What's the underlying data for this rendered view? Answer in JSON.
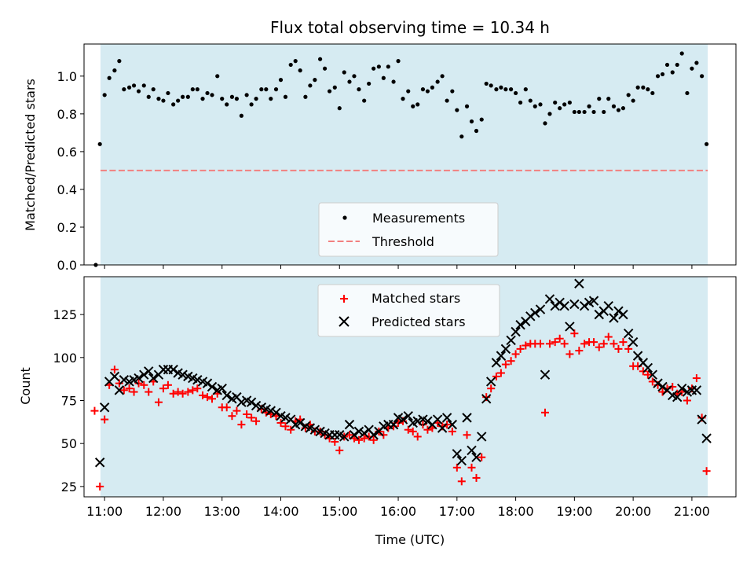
{
  "chart_data": [
    {
      "type": "scatter",
      "title": "Flux total observing time = 10.34 h",
      "xlabel": "",
      "ylabel": "Matched/Predicted stars",
      "xlim": [
        10.65,
        21.75
      ],
      "ylim": [
        0.0,
        1.17
      ],
      "yticks": [
        0.0,
        0.2,
        0.4,
        0.6,
        0.8,
        1.0
      ],
      "ytick_labels": [
        "0.0",
        "0.2",
        "0.4",
        "0.6",
        "0.8",
        "1.0"
      ],
      "observing_window": [
        10.93,
        21.27
      ],
      "legend": "lower-center",
      "series": [
        {
          "name": "Measurements",
          "marker": "dot",
          "color": "#000000",
          "x": [
            10.85,
            10.92,
            11.0,
            11.08,
            11.17,
            11.25,
            11.33,
            11.42,
            11.5,
            11.58,
            11.67,
            11.75,
            11.83,
            11.92,
            12.0,
            12.08,
            12.17,
            12.25,
            12.33,
            12.42,
            12.5,
            12.58,
            12.67,
            12.75,
            12.83,
            12.92,
            13.0,
            13.08,
            13.17,
            13.25,
            13.33,
            13.42,
            13.5,
            13.58,
            13.67,
            13.75,
            13.83,
            13.92,
            14.0,
            14.08,
            14.17,
            14.25,
            14.33,
            14.42,
            14.5,
            14.58,
            14.67,
            14.75,
            14.83,
            14.92,
            15.0,
            15.08,
            15.17,
            15.25,
            15.33,
            15.42,
            15.5,
            15.58,
            15.67,
            15.75,
            15.83,
            15.92,
            16.0,
            16.08,
            16.17,
            16.25,
            16.33,
            16.42,
            16.5,
            16.58,
            16.67,
            16.75,
            16.83,
            16.92,
            17.0,
            17.08,
            17.17,
            17.25,
            17.33,
            17.42,
            17.5,
            17.58,
            17.67,
            17.75,
            17.83,
            17.92,
            18.0,
            18.08,
            18.17,
            18.25,
            18.33,
            18.42,
            18.5,
            18.58,
            18.67,
            18.75,
            18.83,
            18.92,
            19.0,
            19.08,
            19.17,
            19.25,
            19.33,
            19.42,
            19.5,
            19.58,
            19.67,
            19.75,
            19.83,
            19.92,
            20.0,
            20.08,
            20.17,
            20.25,
            20.33,
            20.42,
            20.5,
            20.58,
            20.67,
            20.75,
            20.83,
            20.92,
            21.0,
            21.08,
            21.17,
            21.25
          ],
          "y": [
            0.0,
            0.64,
            0.9,
            0.99,
            1.03,
            1.08,
            0.93,
            0.94,
            0.95,
            0.92,
            0.95,
            0.89,
            0.93,
            0.88,
            0.87,
            0.91,
            0.85,
            0.87,
            0.89,
            0.89,
            0.93,
            0.93,
            0.88,
            0.91,
            0.9,
            1.0,
            0.88,
            0.85,
            0.89,
            0.88,
            0.79,
            0.9,
            0.85,
            0.88,
            0.93,
            0.93,
            0.88,
            0.93,
            0.98,
            0.89,
            1.06,
            1.08,
            1.03,
            0.89,
            0.95,
            0.98,
            1.09,
            1.04,
            0.92,
            0.94,
            0.83,
            1.02,
            0.97,
            1.0,
            0.93,
            0.87,
            0.96,
            1.04,
            1.05,
            0.99,
            1.05,
            0.97,
            1.08,
            0.88,
            0.92,
            0.84,
            0.85,
            0.93,
            0.92,
            0.94,
            0.97,
            1.0,
            0.87,
            0.92,
            0.82,
            0.68,
            0.84,
            0.76,
            0.71,
            0.77,
            0.96,
            0.95,
            0.93,
            0.94,
            0.93,
            0.93,
            0.91,
            0.86,
            0.93,
            0.87,
            0.84,
            0.85,
            0.75,
            0.8,
            0.86,
            0.83,
            0.85,
            0.86,
            0.81,
            0.81,
            0.81,
            0.84,
            0.81,
            0.88,
            0.81,
            0.88,
            0.84,
            0.82,
            0.83,
            0.9,
            0.87,
            0.94,
            0.94,
            0.93,
            0.91,
            1.0,
            1.01,
            1.06,
            1.02,
            1.06,
            1.12,
            0.91,
            1.04,
            1.07,
            1.0,
            0.64
          ]
        },
        {
          "name": "Threshold",
          "type": "line",
          "style": "dashed",
          "color": "#f28080",
          "x": [
            10.93,
            21.27
          ],
          "y": [
            0.5,
            0.5
          ]
        }
      ]
    },
    {
      "type": "scatter",
      "title": "",
      "xlabel": "Time (UTC)",
      "ylabel": "Count",
      "xlim": [
        10.65,
        21.75
      ],
      "ylim": [
        19,
        147
      ],
      "yticks": [
        25,
        50,
        75,
        100,
        125
      ],
      "ytick_labels": [
        "25",
        "50",
        "75",
        "100",
        "125"
      ],
      "xticks": [
        11,
        12,
        13,
        14,
        15,
        16,
        17,
        18,
        19,
        20,
        21
      ],
      "xtick_labels": [
        "11:00",
        "12:00",
        "13:00",
        "14:00",
        "15:00",
        "16:00",
        "17:00",
        "18:00",
        "19:00",
        "20:00",
        "21:00"
      ],
      "observing_window": [
        10.93,
        21.27
      ],
      "legend": "top-center",
      "series": [
        {
          "name": "Matched stars",
          "marker": "plus",
          "color": "#ff0000",
          "x": [
            10.83,
            10.92,
            11.0,
            11.08,
            11.17,
            11.25,
            11.33,
            11.42,
            11.5,
            11.58,
            11.67,
            11.75,
            11.83,
            11.92,
            12.0,
            12.08,
            12.17,
            12.25,
            12.33,
            12.42,
            12.5,
            12.58,
            12.67,
            12.75,
            12.83,
            12.92,
            13.0,
            13.08,
            13.17,
            13.25,
            13.33,
            13.42,
            13.5,
            13.58,
            13.67,
            13.75,
            13.83,
            13.92,
            14.0,
            14.08,
            14.17,
            14.25,
            14.33,
            14.42,
            14.5,
            14.58,
            14.67,
            14.75,
            14.83,
            14.92,
            15.0,
            15.08,
            15.17,
            15.25,
            15.33,
            15.42,
            15.5,
            15.58,
            15.67,
            15.75,
            15.83,
            15.92,
            16.0,
            16.08,
            16.17,
            16.25,
            16.33,
            16.42,
            16.5,
            16.58,
            16.67,
            16.75,
            16.83,
            16.92,
            17.0,
            17.08,
            17.17,
            17.25,
            17.33,
            17.42,
            17.5,
            17.58,
            17.67,
            17.75,
            17.83,
            17.92,
            18.0,
            18.08,
            18.17,
            18.25,
            18.33,
            18.42,
            18.5,
            18.58,
            18.67,
            18.75,
            18.83,
            18.92,
            19.0,
            19.08,
            19.17,
            19.25,
            19.33,
            19.42,
            19.5,
            19.58,
            19.67,
            19.75,
            19.83,
            19.92,
            20.0,
            20.08,
            20.17,
            20.25,
            20.33,
            20.42,
            20.5,
            20.58,
            20.67,
            20.75,
            20.83,
            20.92,
            21.0,
            21.08,
            21.17,
            21.25
          ],
          "y": [
            69,
            25,
            64,
            84,
            93,
            85,
            81,
            82,
            80,
            85,
            84,
            80,
            86,
            74,
            82,
            84,
            79,
            80,
            79,
            80,
            81,
            82,
            78,
            77,
            76,
            79,
            71,
            71,
            66,
            69,
            61,
            67,
            65,
            63,
            70,
            68,
            67,
            66,
            62,
            60,
            58,
            63,
            64,
            59,
            61,
            57,
            57,
            55,
            53,
            51,
            46,
            54,
            55,
            53,
            52,
            53,
            54,
            52,
            57,
            55,
            59,
            60,
            62,
            63,
            58,
            57,
            54,
            61,
            58,
            59,
            62,
            60,
            61,
            57,
            36,
            28,
            55,
            36,
            30,
            42,
            77,
            82,
            89,
            91,
            96,
            98,
            102,
            105,
            107,
            108,
            108,
            108,
            68,
            108,
            109,
            111,
            108,
            102,
            114,
            104,
            108,
            109,
            109,
            106,
            108,
            112,
            108,
            105,
            109,
            105,
            95,
            95,
            92,
            90,
            86,
            84,
            80,
            82,
            83,
            79,
            80,
            75,
            82,
            88,
            65,
            34
          ]
        },
        {
          "name": "Predicted stars",
          "marker": "x",
          "color": "#000000",
          "x": [
            10.92,
            11.0,
            11.08,
            11.17,
            11.25,
            11.33,
            11.42,
            11.5,
            11.58,
            11.67,
            11.75,
            11.83,
            11.92,
            12.0,
            12.08,
            12.17,
            12.25,
            12.33,
            12.42,
            12.5,
            12.58,
            12.67,
            12.75,
            12.83,
            12.92,
            13.0,
            13.08,
            13.17,
            13.25,
            13.33,
            13.42,
            13.5,
            13.58,
            13.67,
            13.75,
            13.83,
            13.92,
            14.0,
            14.08,
            14.17,
            14.25,
            14.33,
            14.42,
            14.5,
            14.58,
            14.67,
            14.75,
            14.83,
            14.92,
            15.0,
            15.08,
            15.17,
            15.25,
            15.33,
            15.42,
            15.5,
            15.58,
            15.67,
            15.75,
            15.83,
            15.92,
            16.0,
            16.08,
            16.17,
            16.25,
            16.33,
            16.42,
            16.5,
            16.58,
            16.67,
            16.75,
            16.83,
            16.92,
            17.0,
            17.08,
            17.17,
            17.25,
            17.33,
            17.42,
            17.5,
            17.58,
            17.67,
            17.75,
            17.83,
            17.92,
            18.0,
            18.08,
            18.17,
            18.25,
            18.33,
            18.42,
            18.5,
            18.58,
            18.67,
            18.75,
            18.83,
            18.92,
            19.0,
            19.08,
            19.17,
            19.25,
            19.33,
            19.42,
            19.5,
            19.58,
            19.67,
            19.75,
            19.83,
            19.92,
            20.0,
            20.08,
            20.17,
            20.25,
            20.33,
            20.42,
            20.5,
            20.58,
            20.67,
            20.75,
            20.83,
            20.92,
            21.0,
            21.08,
            21.17,
            21.25
          ],
          "y": [
            39,
            71,
            86,
            89,
            81,
            87,
            86,
            87,
            88,
            90,
            92,
            88,
            90,
            93,
            93,
            93,
            91,
            90,
            89,
            88,
            87,
            86,
            85,
            83,
            81,
            82,
            78,
            76,
            77,
            74,
            75,
            74,
            72,
            71,
            70,
            69,
            68,
            66,
            65,
            64,
            61,
            62,
            60,
            59,
            58,
            57,
            56,
            55,
            55,
            55,
            54,
            61,
            55,
            57,
            56,
            58,
            55,
            57,
            60,
            61,
            61,
            65,
            64,
            66,
            62,
            63,
            64,
            63,
            61,
            64,
            59,
            65,
            61,
            44,
            40,
            65,
            46,
            42,
            54,
            76,
            86,
            97,
            101,
            105,
            110,
            115,
            119,
            121,
            124,
            126,
            128,
            90,
            134,
            130,
            132,
            130,
            118,
            131,
            143,
            130,
            132,
            133,
            125,
            127,
            130,
            123,
            127,
            125,
            114,
            109,
            101,
            97,
            94,
            90,
            85,
            83,
            81,
            78,
            77,
            82,
            80,
            81,
            81,
            64,
            53
          ]
        }
      ]
    }
  ]
}
